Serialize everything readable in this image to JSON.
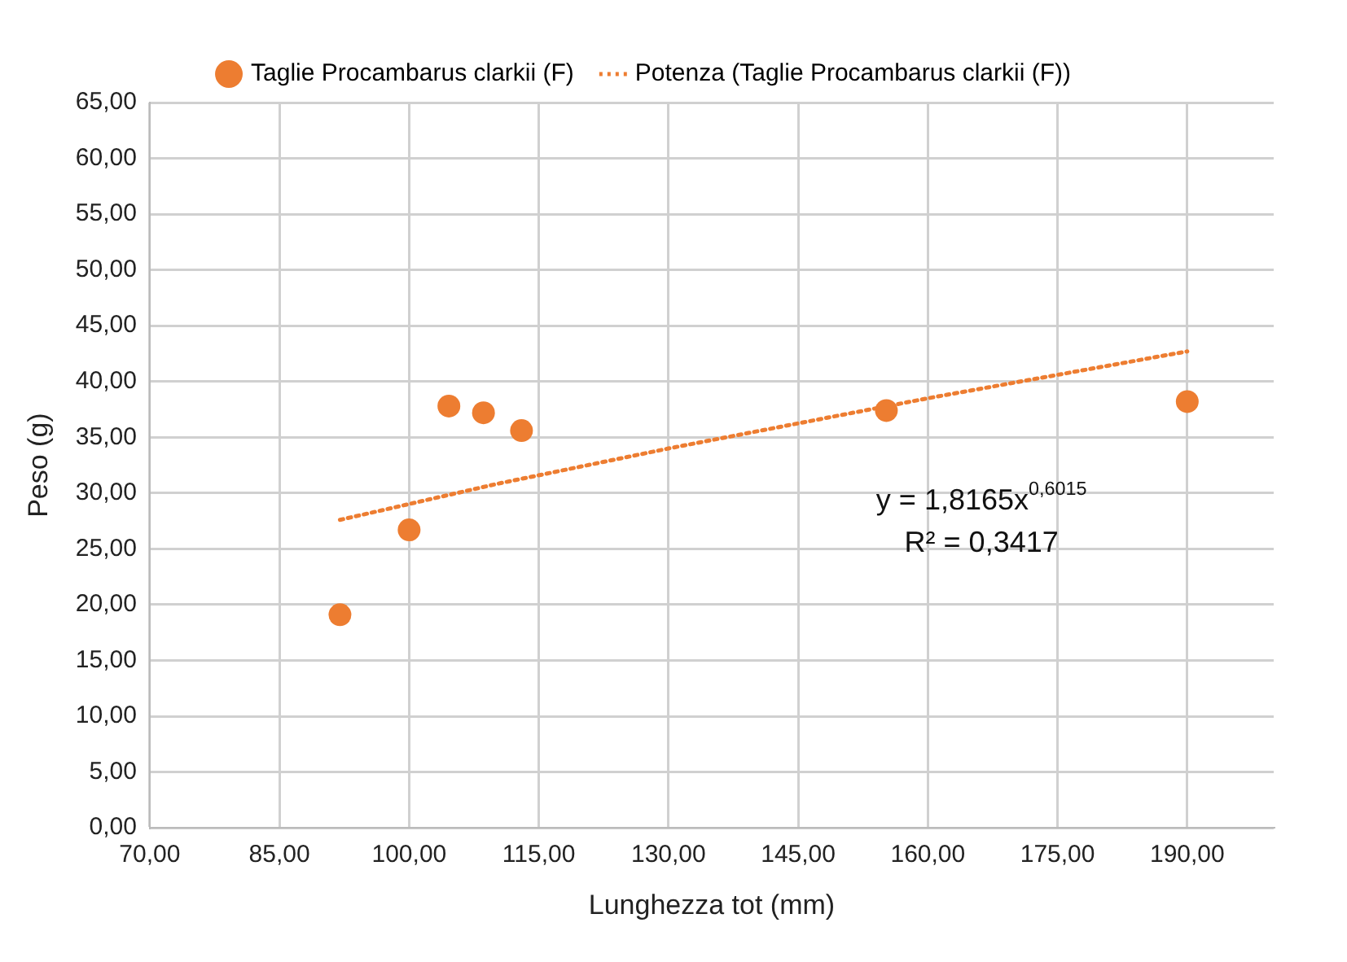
{
  "chart_data": {
    "type": "scatter",
    "xlabel": "Lunghezza tot (mm)",
    "ylabel": "Peso (g)",
    "series": [
      {
        "name": "Taglie Procambarus clarkii (F)",
        "color": "#ed7d31",
        "marker": "circle",
        "x": [
          92,
          100,
          104.6,
          108.6,
          113,
          155.2,
          190
        ],
        "values": [
          19.1,
          26.7,
          37.8,
          37.2,
          35.6,
          37.4,
          38.2
        ]
      },
      {
        "name": "Potenza (Taglie Procambarus clarkii (F))",
        "type": "line",
        "color": "#ed7d31",
        "marker": "none",
        "line_style": "dotted",
        "x": [
          92,
          110,
          130,
          160,
          190
        ],
        "values": [
          27.6,
          30.8,
          34.0,
          38.5,
          42.7
        ]
      }
    ],
    "xlim": [
      70,
      200
    ],
    "xticks": [
      {
        "value": 70,
        "label": "70,00"
      },
      {
        "value": 85,
        "label": "85,00"
      },
      {
        "value": 100,
        "label": "100,00"
      },
      {
        "value": 115,
        "label": "115,00"
      },
      {
        "value": 130,
        "label": "130,00"
      },
      {
        "value": 145,
        "label": "145,00"
      },
      {
        "value": 160,
        "label": "160,00"
      },
      {
        "value": 175,
        "label": "175,00"
      },
      {
        "value": 190,
        "label": "190,00"
      }
    ],
    "ylim": [
      0,
      65
    ],
    "yticks": [
      {
        "value": 0,
        "label": "0,00"
      },
      {
        "value": 5,
        "label": "5,00"
      },
      {
        "value": 10,
        "label": "10,00"
      },
      {
        "value": 15,
        "label": "15,00"
      },
      {
        "value": 20,
        "label": "20,00"
      },
      {
        "value": 25,
        "label": "25,00"
      },
      {
        "value": 30,
        "label": "30,00"
      },
      {
        "value": 35,
        "label": "35,00"
      },
      {
        "value": 40,
        "label": "40,00"
      },
      {
        "value": 45,
        "label": "45,00"
      },
      {
        "value": 50,
        "label": "50,00"
      },
      {
        "value": 55,
        "label": "55,00"
      },
      {
        "value": 60,
        "label": "60,00"
      },
      {
        "value": 65,
        "label": "65,00"
      }
    ],
    "annotations": [
      "y = 1,8165x$^{0,6015}$",
      "R² = 0,3417"
    ],
    "grid": true,
    "legend": "top"
  }
}
